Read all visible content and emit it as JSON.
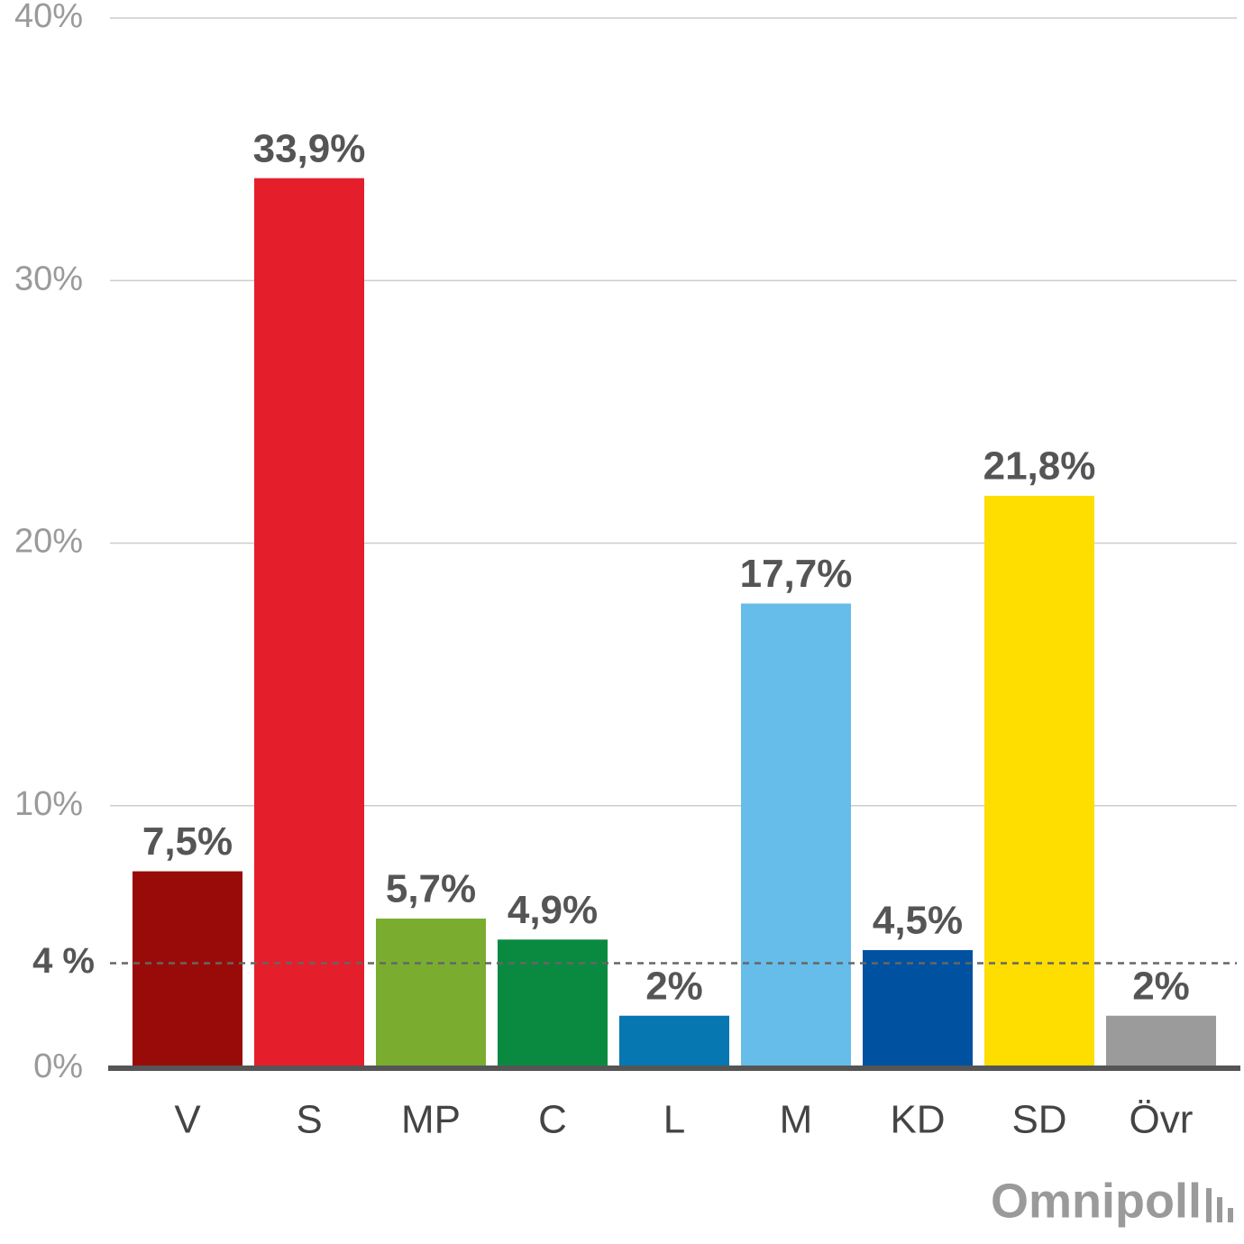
{
  "chart_data": {
    "type": "bar",
    "categories": [
      "V",
      "S",
      "MP",
      "C",
      "L",
      "M",
      "KD",
      "SD",
      "Övr"
    ],
    "values": [
      7.5,
      33.9,
      5.7,
      4.9,
      2,
      17.7,
      4.5,
      21.8,
      2
    ],
    "value_labels": [
      "7,5%",
      "33,9%",
      "5,7%",
      "4,9%",
      "2%",
      "17,7%",
      "4,5%",
      "21,8%",
      "2%"
    ],
    "colors": [
      "#990b08",
      "#e41e2b",
      "#7aad2f",
      "#0a8a40",
      "#0677b0",
      "#66bde9",
      "#0052a0",
      "#fedd00",
      "#9b9b9b"
    ],
    "ylim": [
      0,
      40
    ],
    "yticks": [
      {
        "value": 0,
        "label": "0%"
      },
      {
        "value": 10,
        "label": "10%"
      },
      {
        "value": 20,
        "label": "20%"
      },
      {
        "value": 30,
        "label": "30%"
      },
      {
        "value": 40,
        "label": "40%"
      }
    ],
    "grid": true,
    "threshold": {
      "value": 4,
      "label": "4 %"
    },
    "logo": "Omnipoll"
  }
}
